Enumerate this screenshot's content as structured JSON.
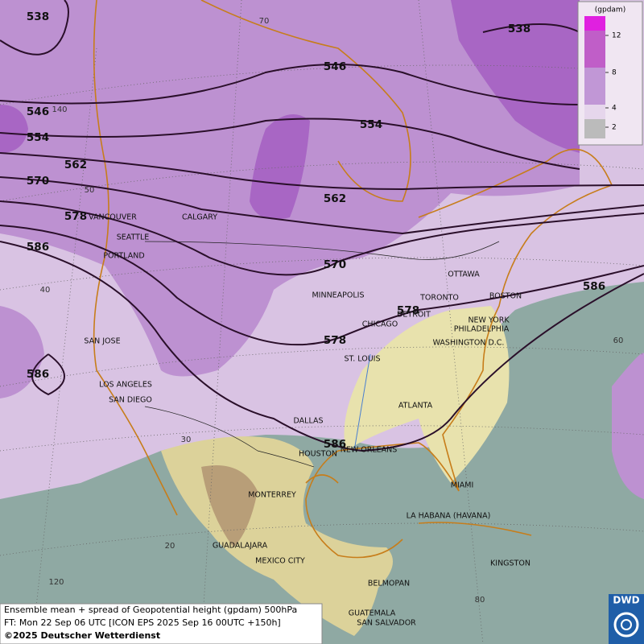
{
  "cities": [
    "VANCOUVER",
    "CALGARY",
    "SEATTLE",
    "PORTLAND",
    "MINNEAPOLIS",
    "TORONTO",
    "OTTAWA",
    "BOSTON",
    "DETROIT",
    "CHICAGO",
    "NEW YORK",
    "PHILADELPHIA",
    "WASHINGTON D.C.",
    "ST. LOUIS",
    "SAN JOSE",
    "LOS ANGELES",
    "SAN DIEGO",
    "DALLAS",
    "ATLANTA",
    "HOUSTON",
    "NEW ORLEANS",
    "MIAMI",
    "MONTERREY",
    "LA HABANA (HAVANA)",
    "GUADALAJARA",
    "MEXICO CITY",
    "KINGSTON",
    "BELMOPAN",
    "GUATEMALA",
    "SAN SALVADOR"
  ],
  "contour_labels": [
    538,
    538,
    546,
    546,
    554,
    554,
    562,
    562,
    570,
    570,
    578,
    578,
    578,
    586,
    586,
    586,
    586
  ],
  "graticule_labels": [
    70,
    140,
    50,
    40,
    60,
    30,
    20,
    120,
    80
  ],
  "legend": {
    "title": "(gpdam)",
    "ticks": [
      12,
      8,
      4,
      2
    ]
  },
  "caption": [
    "Ensemble mean + spread of Geopotential height (gpdam) 500hPa",
    "FT: Mon 22 Sep 06 UTC [ICON EPS 2025 Sep 16 00UTC +150h]",
    "©2025 Deutscher Wetterdienst"
  ],
  "logo": "DWD"
}
